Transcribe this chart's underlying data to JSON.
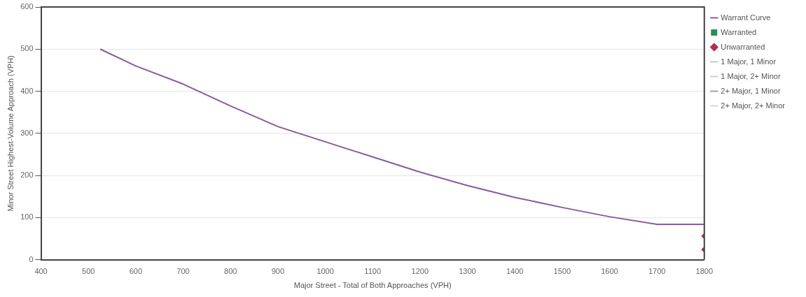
{
  "chart_data": {
    "type": "line",
    "xlabel": "Major Street - Total of Both Approaches (VPH)",
    "ylabel": "Minor Street Highest-Volume Approach (VPH)",
    "xlim": [
      400,
      1800
    ],
    "xticks": [
      400,
      500,
      600,
      700,
      800,
      900,
      1000,
      1100,
      1200,
      1300,
      1400,
      1500,
      1600,
      1700,
      1800
    ],
    "ylim": [
      0,
      600
    ],
    "yticks": [
      0,
      100,
      200,
      300,
      400,
      500,
      600
    ],
    "grid": "y",
    "legend": "right",
    "series": [
      {
        "name": "Warrant Curve",
        "type": "line",
        "color": "#8a5a9e",
        "marker": "none",
        "x": [
          525,
          600,
          700,
          800,
          900,
          1000,
          1100,
          1200,
          1300,
          1400,
          1500,
          1600,
          1700,
          1800
        ],
        "values": [
          500,
          460,
          417,
          365,
          316,
          280,
          244,
          208,
          176,
          148,
          124,
          102,
          84,
          84
        ]
      },
      {
        "name": "Warranted",
        "type": "scatter",
        "color": "#2e8b57",
        "marker": "square"
      },
      {
        "name": "Unwarranted",
        "type": "scatter",
        "color": "#b03050",
        "marker": "diamond",
        "x": [
          1800,
          1800
        ],
        "values": [
          56,
          24
        ]
      },
      {
        "name": "1 Major, 1 Minor",
        "type": "line",
        "color": "#c8c8c8",
        "marker": "none"
      },
      {
        "name": "1 Major, 2+ Minor",
        "type": "line",
        "color": "#d0d0d0",
        "marker": "none"
      },
      {
        "name": "2+ Major, 1 Minor",
        "type": "line",
        "color": "#a0a0a0",
        "marker": "none"
      },
      {
        "name": "2+ Major, 2+ Minor",
        "type": "line",
        "color": "#d8d8d8",
        "marker": "none"
      }
    ]
  }
}
